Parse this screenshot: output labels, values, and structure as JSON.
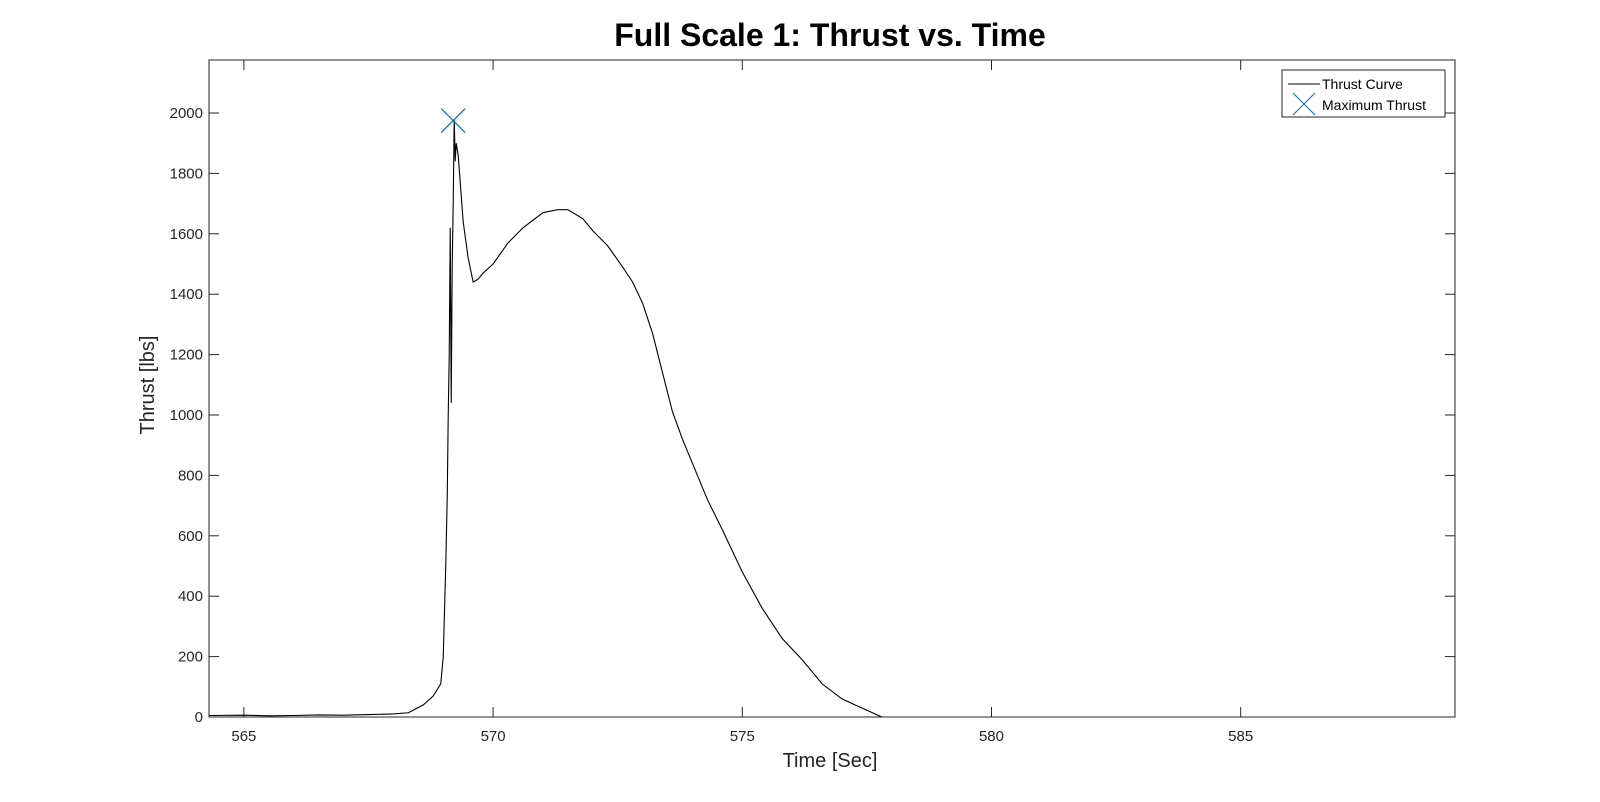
{
  "chart_data": {
    "type": "line",
    "title": "Full Scale 1: Thrust vs. Time",
    "xlabel": "Time [Sec]",
    "ylabel": "Thrust [lbs]",
    "xlim": [
      564.3,
      589.3
    ],
    "ylim": [
      0,
      2000
    ],
    "xticks": [
      565,
      570,
      575,
      580,
      585
    ],
    "yticks": [
      0,
      200,
      400,
      600,
      800,
      1000,
      1200,
      1400,
      1600,
      1800,
      2000
    ],
    "grid": false,
    "legend_position": "top-right",
    "colors": {
      "curve": "#000000",
      "marker": "#0072BD",
      "axes": "#262626"
    },
    "series": [
      {
        "name": "Thrust Curve",
        "x": [
          564.3,
          565.0,
          565.5,
          566.0,
          566.5,
          567.0,
          567.5,
          568.0,
          568.3,
          568.6,
          568.8,
          568.95,
          569.0,
          569.05,
          569.08,
          569.1,
          569.12,
          569.14,
          569.16,
          569.18,
          569.2,
          569.22,
          569.24,
          569.26,
          569.3,
          569.35,
          569.4,
          569.5,
          569.6,
          569.7,
          569.8,
          570.0,
          570.3,
          570.6,
          571.0,
          571.3,
          571.5,
          571.8,
          572.0,
          572.3,
          572.6,
          572.8,
          573.0,
          573.2,
          573.4,
          573.6,
          573.8,
          574.0,
          574.3,
          574.6,
          575.0,
          575.4,
          575.8,
          576.2,
          576.6,
          577.0,
          577.4,
          577.8
        ],
        "values": [
          5,
          6,
          4,
          5,
          7,
          6,
          8,
          10,
          14,
          40,
          70,
          110,
          200,
          500,
          730,
          1000,
          1200,
          1620,
          1040,
          1500,
          1700,
          1980,
          1840,
          1900,
          1860,
          1750,
          1640,
          1520,
          1440,
          1450,
          1470,
          1500,
          1570,
          1620,
          1670,
          1680,
          1680,
          1650,
          1610,
          1560,
          1490,
          1440,
          1370,
          1270,
          1140,
          1010,
          920,
          840,
          720,
          620,
          480,
          360,
          260,
          190,
          110,
          60,
          30,
          0
        ]
      },
      {
        "name": "Maximum Thrust",
        "x": [
          569.2
        ],
        "values": [
          1975
        ]
      }
    ]
  }
}
